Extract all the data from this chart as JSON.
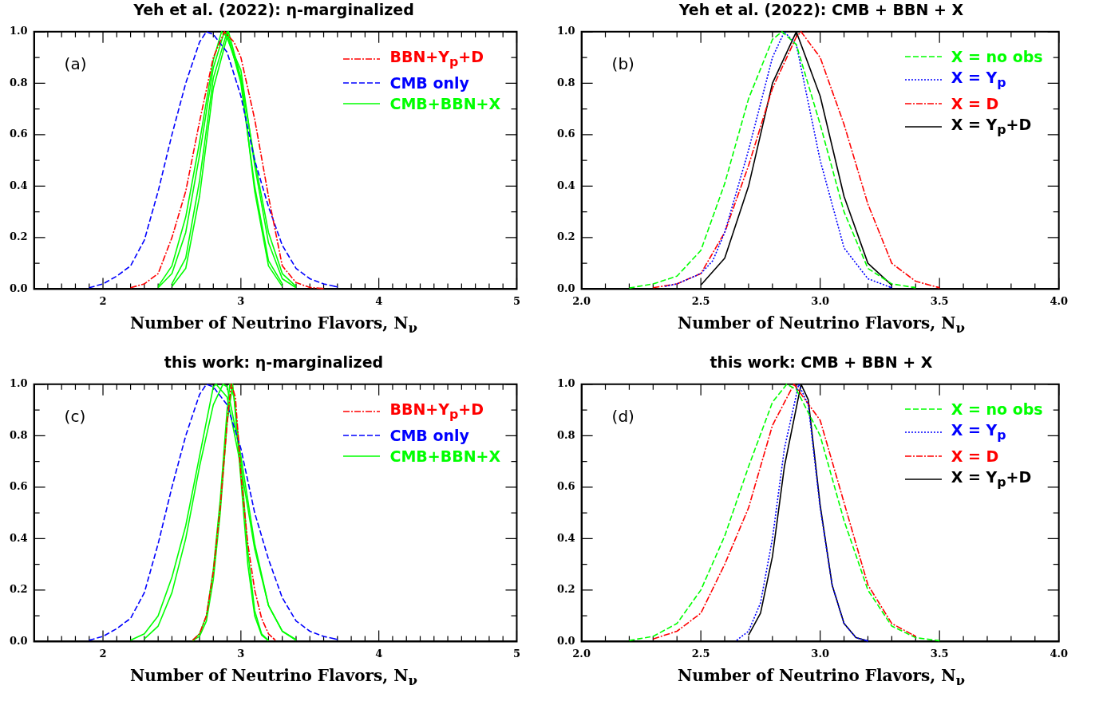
{
  "chart_data": [
    {
      "type": "line",
      "title": "Yeh et al. (2022): η-marginalized",
      "xlabel": "Number of Neutrino Flavors, N$_{ν}$",
      "annotations": [
        "(a)"
      ],
      "legend": "top right",
      "grid": false,
      "marker": "none",
      "xlim": [
        1.5,
        5
      ],
      "xticks": [
        {
          "value": 1.6,
          "label": null
        },
        {
          "value": 1.7,
          "label": null
        },
        {
          "value": 1.8,
          "label": null
        },
        {
          "value": 1.9,
          "label": null
        },
        2,
        {
          "value": 2.1,
          "label": null
        },
        {
          "value": 2.2,
          "label": null
        },
        {
          "value": 2.3,
          "label": null
        },
        {
          "value": 2.4,
          "label": null
        },
        {
          "value": 2.5,
          "label": null
        },
        {
          "value": 2.6,
          "label": null
        },
        {
          "value": 2.7,
          "label": null
        },
        {
          "value": 2.8,
          "label": null
        },
        {
          "value": 2.9,
          "label": null
        },
        3,
        {
          "value": 3.1,
          "label": null
        },
        {
          "value": 3.2,
          "label": null
        },
        {
          "value": 3.3,
          "label": null
        },
        {
          "value": 3.4,
          "label": null
        },
        {
          "value": 3.5,
          "label": null
        },
        {
          "value": 3.6,
          "label": null
        },
        {
          "value": 3.7,
          "label": null
        },
        {
          "value": 3.8,
          "label": null
        },
        {
          "value": 3.9,
          "label": null
        },
        4,
        {
          "value": 4.1,
          "label": null
        },
        {
          "value": 4.2,
          "label": null
        },
        {
          "value": 4.3,
          "label": null
        },
        {
          "value": 4.4,
          "label": null
        },
        {
          "value": 4.5,
          "label": null
        },
        {
          "value": 4.6,
          "label": null
        },
        {
          "value": 4.7,
          "label": null
        },
        {
          "value": 4.8,
          "label": null
        },
        {
          "value": 4.9,
          "label": null
        },
        5
      ],
      "ylim": [
        0,
        1
      ],
      "yticks": [
        {
          "value": 0,
          "label": "0.0"
        },
        {
          "value": 0.1,
          "label": null
        },
        {
          "value": 0.2,
          "label": "0.2"
        },
        {
          "value": 0.3,
          "label": null
        },
        {
          "value": 0.4,
          "label": "0.4"
        },
        {
          "value": 0.5,
          "label": null
        },
        {
          "value": 0.6,
          "label": "0.6"
        },
        {
          "value": 0.7,
          "label": null
        },
        {
          "value": 0.8,
          "label": "0.8"
        },
        {
          "value": 0.9,
          "label": null
        },
        {
          "value": 1,
          "label": "1.0"
        }
      ],
      "series": [
        {
          "name": "BBN+Y$_{p}$+D",
          "color": "#ff0000",
          "line_style": "dashdot",
          "x": [
            2.2,
            2.3,
            2.4,
            2.5,
            2.6,
            2.7,
            2.8,
            2.88,
            2.95,
            3.0,
            3.1,
            3.2,
            3.3,
            3.4,
            3.5,
            3.6
          ],
          "values": [
            0.005,
            0.02,
            0.06,
            0.2,
            0.38,
            0.65,
            0.9,
            1.0,
            0.96,
            0.9,
            0.66,
            0.36,
            0.09,
            0.025,
            0.006,
            0.002
          ]
        },
        {
          "name": "CMB only",
          "color": "#0000ff",
          "line_style": "dashed",
          "x": [
            1.9,
            2.0,
            2.1,
            2.2,
            2.3,
            2.4,
            2.5,
            2.6,
            2.7,
            2.75,
            2.8,
            2.9,
            3.0,
            3.1,
            3.2,
            3.3,
            3.4,
            3.5,
            3.6,
            3.7
          ],
          "values": [
            0.005,
            0.02,
            0.05,
            0.09,
            0.19,
            0.38,
            0.6,
            0.8,
            0.96,
            1.0,
            0.99,
            0.92,
            0.75,
            0.5,
            0.32,
            0.17,
            0.08,
            0.04,
            0.02,
            0.008
          ]
        },
        {
          "name": "CMB+BBN+X",
          "color": "#00ff00",
          "line_style": "solid",
          "x": [
            2.4,
            2.5,
            2.6,
            2.7,
            2.8,
            2.86,
            2.9,
            3.0,
            3.1,
            3.2,
            3.3,
            3.4
          ],
          "values": [
            0.01,
            0.09,
            0.28,
            0.57,
            0.89,
            1.0,
            0.98,
            0.82,
            0.5,
            0.22,
            0.06,
            0.01
          ]
        },
        {
          "color": "#00ff00",
          "line_style": "solid",
          "x": [
            2.4,
            2.5,
            2.6,
            2.7,
            2.8,
            2.88,
            3.0,
            3.1,
            3.2,
            3.3,
            3.4
          ],
          "values": [
            0.005,
            0.06,
            0.22,
            0.52,
            0.86,
            1.0,
            0.85,
            0.48,
            0.18,
            0.04,
            0.005
          ]
        },
        {
          "color": "#00ff00",
          "line_style": "solid",
          "x": [
            2.5,
            2.6,
            2.7,
            2.8,
            2.9,
            3.0,
            3.1,
            3.2,
            3.3
          ],
          "values": [
            0.02,
            0.12,
            0.42,
            0.82,
            1.0,
            0.8,
            0.4,
            0.11,
            0.02
          ]
        },
        {
          "color": "#00ff00",
          "line_style": "solid",
          "x": [
            2.5,
            2.6,
            2.7,
            2.8,
            2.91,
            3.0,
            3.1,
            3.2,
            3.3
          ],
          "values": [
            0.01,
            0.08,
            0.36,
            0.78,
            1.0,
            0.82,
            0.38,
            0.09,
            0.01
          ]
        }
      ]
    },
    {
      "type": "line",
      "title": "Yeh et al. (2022): CMB + BBN + X",
      "xlabel": "Number of Neutrino Flavors, N$_{ν}$",
      "annotations": [
        "(b)"
      ],
      "legend": "top right",
      "grid": false,
      "marker": "none",
      "xlim": [
        2,
        4
      ],
      "xticks": [
        {
          "value": 2,
          "label": "2.0"
        },
        {
          "value": 2.1,
          "label": null
        },
        {
          "value": 2.2,
          "label": null
        },
        {
          "value": 2.3,
          "label": null
        },
        {
          "value": 2.4,
          "label": null
        },
        {
          "value": 2.5,
          "label": "2.5"
        },
        {
          "value": 2.6,
          "label": null
        },
        {
          "value": 2.7,
          "label": null
        },
        {
          "value": 2.8,
          "label": null
        },
        {
          "value": 2.9,
          "label": null
        },
        {
          "value": 3,
          "label": "3.0"
        },
        {
          "value": 3.1,
          "label": null
        },
        {
          "value": 3.2,
          "label": null
        },
        {
          "value": 3.3,
          "label": null
        },
        {
          "value": 3.4,
          "label": null
        },
        {
          "value": 3.5,
          "label": "3.5"
        },
        {
          "value": 3.6,
          "label": null
        },
        {
          "value": 3.7,
          "label": null
        },
        {
          "value": 3.8,
          "label": null
        },
        {
          "value": 3.9,
          "label": null
        },
        {
          "value": 4,
          "label": "4.0"
        }
      ],
      "ylim": [
        0,
        1
      ],
      "yticks": [
        {
          "value": 0,
          "label": "0.0"
        },
        {
          "value": 0.1,
          "label": null
        },
        {
          "value": 0.2,
          "label": "0.2"
        },
        {
          "value": 0.3,
          "label": null
        },
        {
          "value": 0.4,
          "label": "0.4"
        },
        {
          "value": 0.5,
          "label": null
        },
        {
          "value": 0.6,
          "label": "0.6"
        },
        {
          "value": 0.7,
          "label": null
        },
        {
          "value": 0.8,
          "label": "0.8"
        },
        {
          "value": 0.9,
          "label": null
        },
        {
          "value": 1,
          "label": "1.0"
        }
      ],
      "series": [
        {
          "name": "X = no obs",
          "color": "#00ff00",
          "line_style": "dashed",
          "x": [
            2.2,
            2.3,
            2.4,
            2.5,
            2.6,
            2.7,
            2.8,
            2.84,
            2.9,
            3.0,
            3.1,
            3.2,
            3.3,
            3.4
          ],
          "values": [
            0.004,
            0.02,
            0.05,
            0.15,
            0.41,
            0.74,
            0.97,
            1.0,
            0.95,
            0.64,
            0.3,
            0.08,
            0.02,
            0.005
          ]
        },
        {
          "name": "X = Y$_{p}$",
          "color": "#0000ff",
          "line_style": "dotted",
          "x": [
            2.35,
            2.4,
            2.5,
            2.55,
            2.6,
            2.7,
            2.8,
            2.85,
            2.9,
            3.0,
            3.1,
            3.2,
            3.3
          ],
          "values": [
            0.01,
            0.02,
            0.06,
            0.11,
            0.22,
            0.54,
            0.9,
            1.0,
            0.95,
            0.5,
            0.16,
            0.04,
            0.005
          ]
        },
        {
          "name": "X = D",
          "color": "#ff0000",
          "line_style": "dashdot",
          "x": [
            2.3,
            2.4,
            2.5,
            2.6,
            2.7,
            2.8,
            2.9,
            2.92,
            3.0,
            3.1,
            3.2,
            3.3,
            3.4,
            3.5
          ],
          "values": [
            0.005,
            0.02,
            0.06,
            0.22,
            0.48,
            0.78,
            0.98,
            1.0,
            0.9,
            0.64,
            0.33,
            0.1,
            0.03,
            0.005
          ]
        },
        {
          "name": "X = Y$_{p}$+D",
          "color": "#000000",
          "line_style": "solid",
          "x": [
            2.5,
            2.6,
            2.7,
            2.8,
            2.9,
            3.0,
            3.1,
            3.2,
            3.3
          ],
          "values": [
            0.015,
            0.12,
            0.4,
            0.8,
            1.0,
            0.75,
            0.36,
            0.1,
            0.015
          ]
        }
      ]
    },
    {
      "type": "line",
      "title": "this work: η-marginalized",
      "xlabel": "Number of Neutrino Flavors, N$_{ν}$",
      "annotations": [
        "(c)"
      ],
      "legend": "top right",
      "grid": false,
      "marker": "none",
      "xlim": [
        1.5,
        5
      ],
      "xticks": [
        {
          "value": 1.6,
          "label": null
        },
        {
          "value": 1.7,
          "label": null
        },
        {
          "value": 1.8,
          "label": null
        },
        {
          "value": 1.9,
          "label": null
        },
        2,
        {
          "value": 2.1,
          "label": null
        },
        {
          "value": 2.2,
          "label": null
        },
        {
          "value": 2.3,
          "label": null
        },
        {
          "value": 2.4,
          "label": null
        },
        {
          "value": 2.5,
          "label": null
        },
        {
          "value": 2.6,
          "label": null
        },
        {
          "value": 2.7,
          "label": null
        },
        {
          "value": 2.8,
          "label": null
        },
        {
          "value": 2.9,
          "label": null
        },
        3,
        {
          "value": 3.1,
          "label": null
        },
        {
          "value": 3.2,
          "label": null
        },
        {
          "value": 3.3,
          "label": null
        },
        {
          "value": 3.4,
          "label": null
        },
        {
          "value": 3.5,
          "label": null
        },
        {
          "value": 3.6,
          "label": null
        },
        {
          "value": 3.7,
          "label": null
        },
        {
          "value": 3.8,
          "label": null
        },
        {
          "value": 3.9,
          "label": null
        },
        4,
        {
          "value": 4.1,
          "label": null
        },
        {
          "value": 4.2,
          "label": null
        },
        {
          "value": 4.3,
          "label": null
        },
        {
          "value": 4.4,
          "label": null
        },
        {
          "value": 4.5,
          "label": null
        },
        {
          "value": 4.6,
          "label": null
        },
        {
          "value": 4.7,
          "label": null
        },
        {
          "value": 4.8,
          "label": null
        },
        {
          "value": 4.9,
          "label": null
        },
        5
      ],
      "ylim": [
        0,
        1
      ],
      "yticks": [
        {
          "value": 0,
          "label": "0.0"
        },
        {
          "value": 0.1,
          "label": null
        },
        {
          "value": 0.2,
          "label": "0.2"
        },
        {
          "value": 0.3,
          "label": null
        },
        {
          "value": 0.4,
          "label": "0.4"
        },
        {
          "value": 0.5,
          "label": null
        },
        {
          "value": 0.6,
          "label": "0.6"
        },
        {
          "value": 0.7,
          "label": null
        },
        {
          "value": 0.8,
          "label": "0.8"
        },
        {
          "value": 0.9,
          "label": null
        },
        {
          "value": 1,
          "label": "1.0"
        }
      ],
      "series": [
        {
          "name": "BBN+Y$_{p}$+D",
          "color": "#ff0000",
          "line_style": "dashdot",
          "x": [
            2.65,
            2.7,
            2.75,
            2.8,
            2.85,
            2.9,
            2.93,
            2.96,
            3.0,
            3.05,
            3.1,
            3.15,
            3.2,
            3.25
          ],
          "values": [
            0.005,
            0.03,
            0.1,
            0.27,
            0.52,
            0.85,
            1.0,
            0.95,
            0.65,
            0.38,
            0.2,
            0.09,
            0.03,
            0.005
          ]
        },
        {
          "name": "CMB only",
          "color": "#0000ff",
          "line_style": "dashed",
          "x": [
            1.9,
            2.0,
            2.1,
            2.2,
            2.3,
            2.4,
            2.5,
            2.6,
            2.7,
            2.75,
            2.8,
            2.9,
            3.0,
            3.1,
            3.2,
            3.3,
            3.4,
            3.5,
            3.6,
            3.7
          ],
          "values": [
            0.005,
            0.02,
            0.05,
            0.09,
            0.19,
            0.38,
            0.6,
            0.8,
            0.96,
            1.0,
            0.99,
            0.92,
            0.75,
            0.5,
            0.32,
            0.17,
            0.08,
            0.04,
            0.02,
            0.008
          ]
        },
        {
          "name": "CMB+BBN+X",
          "color": "#00ff00",
          "line_style": "solid",
          "x": [
            2.2,
            2.3,
            2.4,
            2.5,
            2.6,
            2.7,
            2.8,
            2.82,
            2.9,
            3.0,
            3.1,
            3.2,
            3.3,
            3.4
          ],
          "values": [
            0.005,
            0.03,
            0.1,
            0.25,
            0.45,
            0.72,
            0.99,
            1.0,
            0.95,
            0.68,
            0.36,
            0.14,
            0.04,
            0.008
          ]
        },
        {
          "color": "#00ff00",
          "line_style": "solid",
          "x": [
            2.3,
            2.4,
            2.5,
            2.6,
            2.7,
            2.8,
            2.87,
            2.9,
            3.0,
            3.1,
            3.2,
            3.3,
            3.4
          ],
          "values": [
            0.01,
            0.06,
            0.19,
            0.4,
            0.68,
            0.92,
            1.0,
            0.99,
            0.72,
            0.38,
            0.14,
            0.04,
            0.005
          ]
        },
        {
          "color": "#00ff00",
          "line_style": "solid",
          "x": [
            2.65,
            2.7,
            2.75,
            2.8,
            2.85,
            2.9,
            2.92,
            2.95,
            3.0,
            3.05,
            3.1,
            3.15,
            3.2
          ],
          "values": [
            0.005,
            0.03,
            0.1,
            0.28,
            0.55,
            0.9,
            1.0,
            0.95,
            0.63,
            0.3,
            0.1,
            0.025,
            0.003
          ]
        },
        {
          "color": "#00ff00",
          "line_style": "solid",
          "x": [
            2.65,
            2.7,
            2.75,
            2.8,
            2.85,
            2.9,
            2.94,
            3.0,
            3.05,
            3.1,
            3.15,
            3.2
          ],
          "values": [
            0.003,
            0.02,
            0.08,
            0.24,
            0.5,
            0.85,
            1.0,
            0.7,
            0.35,
            0.12,
            0.03,
            0.004
          ]
        }
      ]
    },
    {
      "type": "line",
      "title": "this work: CMB + BBN + X",
      "xlabel": "Number of Neutrino Flavors, N$_{ν}$",
      "annotations": [
        "(d)"
      ],
      "legend": "top right",
      "grid": false,
      "marker": "none",
      "xlim": [
        2,
        4
      ],
      "xticks": [
        {
          "value": 2,
          "label": "2.0"
        },
        {
          "value": 2.1,
          "label": null
        },
        {
          "value": 2.2,
          "label": null
        },
        {
          "value": 2.3,
          "label": null
        },
        {
          "value": 2.4,
          "label": null
        },
        {
          "value": 2.5,
          "label": "2.5"
        },
        {
          "value": 2.6,
          "label": null
        },
        {
          "value": 2.7,
          "label": null
        },
        {
          "value": 2.8,
          "label": null
        },
        {
          "value": 2.9,
          "label": null
        },
        {
          "value": 3,
          "label": "3.0"
        },
        {
          "value": 3.1,
          "label": null
        },
        {
          "value": 3.2,
          "label": null
        },
        {
          "value": 3.3,
          "label": null
        },
        {
          "value": 3.4,
          "label": null
        },
        {
          "value": 3.5,
          "label": "3.5"
        },
        {
          "value": 3.6,
          "label": null
        },
        {
          "value": 3.7,
          "label": null
        },
        {
          "value": 3.8,
          "label": null
        },
        {
          "value": 3.9,
          "label": null
        },
        {
          "value": 4,
          "label": "4.0"
        }
      ],
      "ylim": [
        0,
        1
      ],
      "yticks": [
        {
          "value": 0,
          "label": "0.0"
        },
        {
          "value": 0.1,
          "label": null
        },
        {
          "value": 0.2,
          "label": "0.2"
        },
        {
          "value": 0.3,
          "label": null
        },
        {
          "value": 0.4,
          "label": "0.4"
        },
        {
          "value": 0.5,
          "label": null
        },
        {
          "value": 0.6,
          "label": "0.6"
        },
        {
          "value": 0.7,
          "label": null
        },
        {
          "value": 0.8,
          "label": "0.8"
        },
        {
          "value": 0.9,
          "label": null
        },
        {
          "value": 1,
          "label": "1.0"
        }
      ],
      "series": [
        {
          "name": "X = no obs",
          "color": "#00ff00",
          "line_style": "dashed",
          "x": [
            2.2,
            2.3,
            2.4,
            2.5,
            2.6,
            2.7,
            2.8,
            2.86,
            2.9,
            3.0,
            3.1,
            3.2,
            3.3,
            3.4,
            3.5
          ],
          "values": [
            0.004,
            0.02,
            0.07,
            0.2,
            0.41,
            0.68,
            0.93,
            1.0,
            0.98,
            0.8,
            0.47,
            0.2,
            0.06,
            0.015,
            0.003
          ]
        },
        {
          "name": "X = Y$_{p}$",
          "color": "#0000ff",
          "line_style": "dotted",
          "x": [
            2.65,
            2.7,
            2.75,
            2.8,
            2.85,
            2.91,
            2.95,
            3.0,
            3.05,
            3.1,
            3.15,
            3.2
          ],
          "values": [
            0.005,
            0.04,
            0.15,
            0.4,
            0.75,
            1.0,
            0.92,
            0.52,
            0.22,
            0.07,
            0.015,
            0.002
          ]
        },
        {
          "name": "X = D",
          "color": "#ff0000",
          "line_style": "dashdot",
          "x": [
            2.3,
            2.4,
            2.5,
            2.6,
            2.7,
            2.8,
            2.89,
            3.0,
            3.1,
            3.2,
            3.3,
            3.4
          ],
          "values": [
            0.01,
            0.04,
            0.11,
            0.3,
            0.52,
            0.84,
            1.0,
            0.86,
            0.54,
            0.22,
            0.07,
            0.02
          ]
        },
        {
          "name": "X = Y$_{p}$+D",
          "color": "#000000",
          "line_style": "solid",
          "x": [
            2.7,
            2.75,
            2.8,
            2.85,
            2.92,
            2.95,
            3.0,
            3.05,
            3.1,
            3.15,
            3.2
          ],
          "values": [
            0.025,
            0.11,
            0.33,
            0.68,
            1.0,
            0.94,
            0.53,
            0.22,
            0.07,
            0.015,
            0.002
          ]
        }
      ]
    }
  ]
}
